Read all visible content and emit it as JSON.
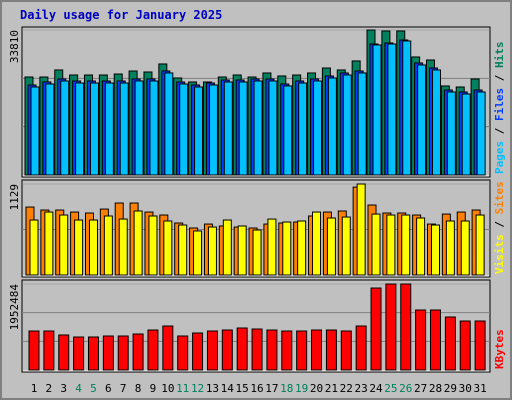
{
  "title": "Daily usage for January 2025",
  "legend_separator": "/",
  "chart_data": [
    {
      "type": "bar",
      "ylim": [
        0,
        33810
      ],
      "yticks": [
        33810
      ],
      "grid_divisions": 3,
      "series": [
        {
          "name": "Hits",
          "color": "#00805c",
          "values": [
            22850,
            22850,
            24490,
            23320,
            23320,
            23320,
            23550,
            24250,
            24020,
            25890,
            22620,
            21690,
            21690,
            22850,
            23320,
            22850,
            23790,
            23090,
            23320,
            23790,
            24950,
            24490,
            26590,
            33810,
            33580,
            33580,
            27520,
            26820,
            20760,
            20520,
            22390
          ]
        },
        {
          "name": "Files",
          "color": "#0040ff",
          "values": [
            20990,
            21690,
            22390,
            21920,
            21920,
            21920,
            21920,
            22390,
            22390,
            24250,
            21690,
            20990,
            21450,
            22150,
            22150,
            22390,
            22390,
            21220,
            21920,
            22390,
            23090,
            23790,
            24250,
            30550,
            30790,
            31480,
            26120,
            24950,
            19820,
            19360,
            19820
          ]
        },
        {
          "name": "Pages",
          "color": "#00c0ff",
          "values": [
            20520,
            21220,
            21920,
            21450,
            21450,
            21450,
            21450,
            21920,
            21920,
            23790,
            21220,
            20520,
            20990,
            21690,
            21690,
            21920,
            21920,
            20760,
            21450,
            21920,
            22620,
            23320,
            23790,
            30320,
            30550,
            31250,
            25650,
            24490,
            19360,
            18890,
            19360
          ]
        }
      ]
    },
    {
      "type": "bar",
      "ylim": [
        0,
        1129
      ],
      "yticks": [
        1129
      ],
      "grid_divisions": 2,
      "series": [
        {
          "name": "Sites",
          "color": "#ff8000",
          "values": [
            843,
            806,
            806,
            781,
            769,
            818,
            893,
            893,
            781,
            744,
            645,
            583,
            632,
            608,
            595,
            583,
            632,
            645,
            657,
            732,
            781,
            794,
            1091,
            868,
            769,
            769,
            744,
            632,
            756,
            781,
            806
          ]
        },
        {
          "name": "Visits",
          "color": "#ffff00",
          "values": [
            682,
            781,
            744,
            682,
            682,
            732,
            694,
            794,
            732,
            670,
            620,
            546,
            595,
            682,
            608,
            558,
            694,
            657,
            670,
            781,
            707,
            719,
            1129,
            756,
            744,
            744,
            707,
            620,
            670,
            670,
            744
          ]
        }
      ]
    },
    {
      "type": "bar",
      "ylim": [
        0,
        1952484
      ],
      "yticks": [
        1952484
      ],
      "grid_divisions": 3,
      "series": [
        {
          "name": "KBytes",
          "color": "#ff0000",
          "values": [
            885400,
            885400,
            794600,
            749200,
            749200,
            771900,
            771900,
            817300,
            908100,
            998900,
            771900,
            840000,
            885400,
            908100,
            953500,
            930800,
            908100,
            885400,
            885400,
            908100,
            908100,
            885400,
            998900,
            1861600,
            1952484,
            1952484,
            1362200,
            1362200,
            1203300,
            1112400,
            1112400
          ]
        }
      ],
      "categories": [
        "1",
        "2",
        "3",
        "4",
        "5",
        "6",
        "7",
        "8",
        "9",
        "10",
        "11",
        "12",
        "13",
        "14",
        "15",
        "16",
        "17",
        "18",
        "19",
        "20",
        "21",
        "22",
        "23",
        "24",
        "25",
        "26",
        "27",
        "28",
        "29",
        "30",
        "31"
      ],
      "category_colors": [
        "#000000",
        "#000000",
        "#000000",
        "#00805c",
        "#00805c",
        "#000000",
        "#000000",
        "#000000",
        "#000000",
        "#000000",
        "#00805c",
        "#00805c",
        "#000000",
        "#000000",
        "#000000",
        "#000000",
        "#000000",
        "#00805c",
        "#00805c",
        "#000000",
        "#000000",
        "#000000",
        "#000000",
        "#000000",
        "#00805c",
        "#00805c",
        "#000000",
        "#000000",
        "#000000",
        "#000000",
        "#000000"
      ]
    }
  ]
}
